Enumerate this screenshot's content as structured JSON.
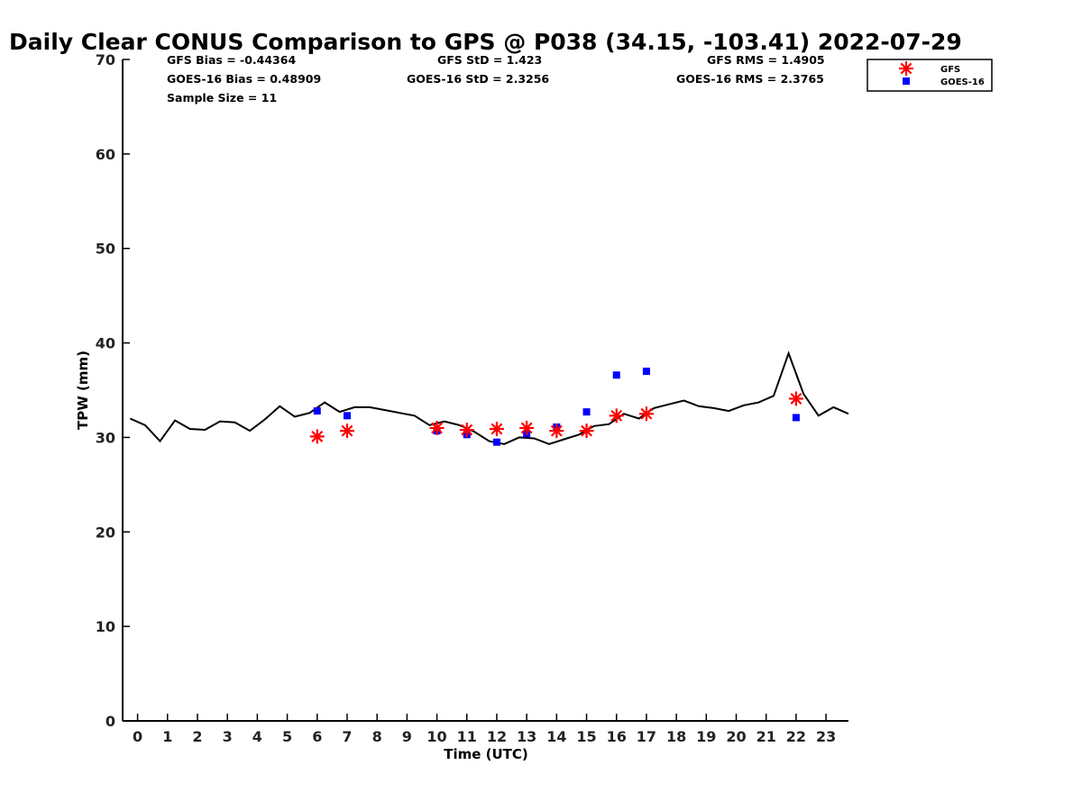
{
  "chart_data": {
    "type": "scatter",
    "title": "Daily Clear CONUS Comparison to GPS @ P038 (34.15, -103.41) 2022-07-29",
    "xlabel": "Time (UTC)",
    "ylabel": "TPW (mm)",
    "xlim": [
      -0.5,
      23.75
    ],
    "ylim": [
      0,
      70
    ],
    "xticks": [
      0,
      1,
      2,
      3,
      4,
      5,
      6,
      7,
      8,
      9,
      10,
      11,
      12,
      13,
      14,
      15,
      16,
      17,
      18,
      19,
      20,
      21,
      22,
      23
    ],
    "yticks": [
      0,
      10,
      20,
      30,
      40,
      50,
      60,
      70
    ],
    "grid": false,
    "legend_position": "top-right",
    "stats": {
      "gfs_bias": "GFS Bias = -0.44364",
      "goes_bias": "GOES-16 Bias = 0.48909",
      "sample_size": "Sample Size = 11",
      "gfs_std": "GFS StD = 1.423",
      "goes_std": "GOES-16 StD = 2.3256",
      "gfs_rms": "GFS RMS = 1.4905",
      "goes_rms": "GOES-16 RMS = 2.3765"
    },
    "series": [
      {
        "kind": "line",
        "color": "#000000",
        "x": [
          -0.25,
          0.25,
          0.75,
          1.25,
          1.75,
          2.25,
          2.75,
          3.25,
          3.75,
          4.25,
          4.75,
          5.25,
          5.75,
          6.25,
          6.75,
          7.25,
          7.75,
          8.25,
          8.75,
          9.25,
          9.75,
          10.25,
          10.75,
          11.25,
          11.75,
          12.25,
          12.75,
          13.25,
          13.75,
          14.25,
          14.75,
          15.25,
          15.75,
          16.25,
          16.75,
          17.25,
          17.75,
          18.25,
          18.75,
          19.25,
          19.75,
          20.25,
          20.75,
          21.25,
          21.75,
          22.25,
          22.75,
          23.25,
          23.75
        ],
        "y": [
          32.0,
          31.3,
          29.6,
          31.8,
          30.9,
          30.8,
          31.7,
          31.6,
          30.7,
          31.9,
          33.3,
          32.2,
          32.6,
          33.7,
          32.7,
          33.2,
          33.2,
          32.9,
          32.6,
          32.3,
          31.3,
          31.7,
          31.3,
          30.6,
          29.6,
          29.3,
          30.0,
          29.9,
          29.3,
          29.8,
          30.3,
          31.2,
          31.4,
          32.5,
          32.0,
          33.1,
          33.5,
          33.9,
          33.3,
          33.1,
          32.8,
          33.4,
          33.7,
          34.4,
          38.9,
          34.6,
          32.3,
          33.2,
          32.5
        ]
      },
      {
        "name": "GFS",
        "kind": "asterisk",
        "color": "#ff0000",
        "x": [
          6,
          7,
          10,
          11,
          12,
          13,
          14,
          15,
          16,
          17,
          22
        ],
        "y": [
          30.1,
          30.7,
          31.0,
          30.8,
          30.9,
          31.0,
          30.7,
          30.7,
          32.3,
          32.5,
          34.1
        ]
      },
      {
        "name": "GOES-16",
        "kind": "square",
        "color": "#0000ff",
        "x": [
          6,
          7,
          10,
          11,
          12,
          13,
          14,
          15,
          16,
          17,
          22
        ],
        "y": [
          32.8,
          32.3,
          30.7,
          30.3,
          29.5,
          30.4,
          31.1,
          32.7,
          36.6,
          37.0,
          32.1
        ]
      }
    ]
  }
}
